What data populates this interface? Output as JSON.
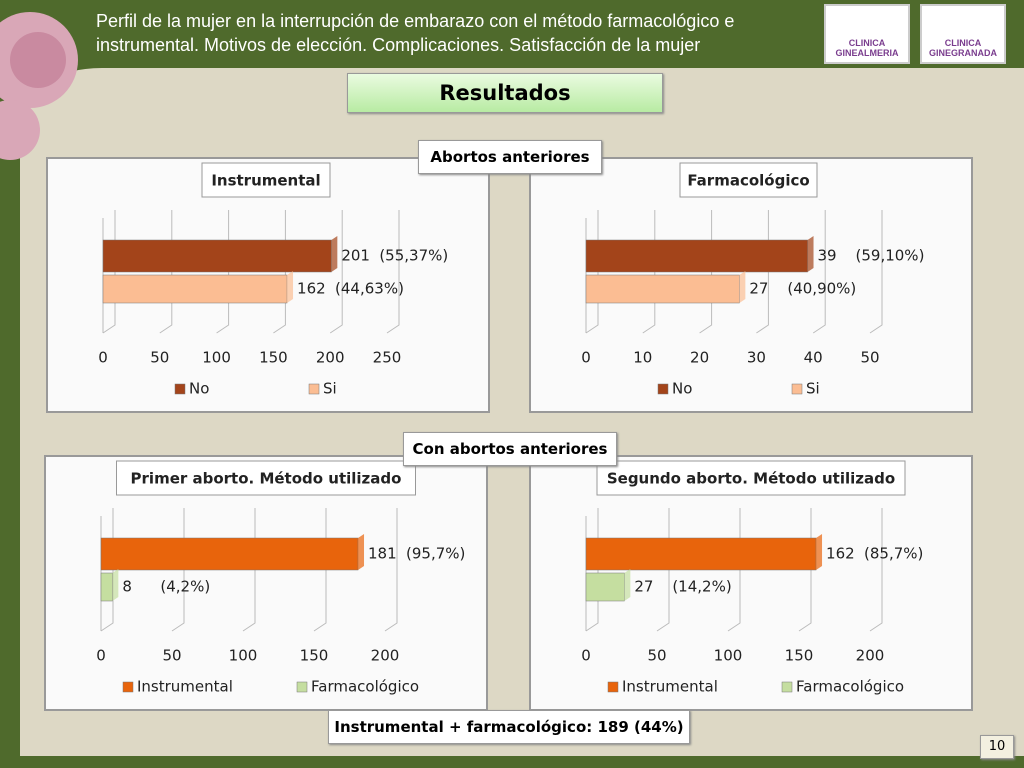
{
  "header": {
    "title": "Perfil de la mujer en la interrupción de embarazo con el método farmacológico e instrumental. Motivos de elección. Complicaciones. Satisfacción de la mujer"
  },
  "logos": [
    "CLINICA GINEALMERIA",
    "CLINICA GINEGRANADA"
  ],
  "heading": "Resultados",
  "sections": [
    "Abortos anteriores",
    "Con abortos anteriores"
  ],
  "footer": "Instrumental + farmacológico: 189 (44%)",
  "page_number": "10",
  "chart_data": [
    {
      "type": "bar",
      "orientation": "horizontal",
      "title": "Instrumental",
      "series": [
        {
          "name": "No",
          "color": "#a3441a",
          "values": [
            201
          ],
          "share_labels": [
            "(55,37%)"
          ]
        },
        {
          "name": "Si",
          "color": "#fbbd93",
          "values": [
            162
          ],
          "share_labels": [
            "(44,63%)"
          ]
        }
      ],
      "xlim": [
        0,
        250
      ],
      "xticks": [
        0,
        50,
        100,
        150,
        200,
        250
      ],
      "grid": true,
      "legend": "bottom"
    },
    {
      "type": "bar",
      "orientation": "horizontal",
      "title": "Farmacológico",
      "series": [
        {
          "name": "No",
          "color": "#a3441a",
          "values": [
            39
          ],
          "share_labels": [
            "(59,10%)"
          ]
        },
        {
          "name": "Si",
          "color": "#fbbd93",
          "values": [
            27
          ],
          "share_labels": [
            "(40,90%)"
          ]
        }
      ],
      "xlim": [
        0,
        50
      ],
      "xticks": [
        0,
        10,
        20,
        30,
        40,
        50
      ],
      "grid": true,
      "legend": "bottom"
    },
    {
      "type": "bar",
      "orientation": "horizontal",
      "title": "Primer aborto. Método utilizado",
      "series": [
        {
          "name": "Instrumental",
          "color": "#e8640c",
          "values": [
            181
          ],
          "share_labels": [
            "(95,7%)"
          ]
        },
        {
          "name": "Farmacológico",
          "color": "#c5dea0",
          "values": [
            8
          ],
          "share_labels": [
            "(4,2%)"
          ]
        }
      ],
      "xlim": [
        0,
        200
      ],
      "xticks": [
        0,
        50,
        100,
        150,
        200
      ],
      "grid": true,
      "legend": "bottom"
    },
    {
      "type": "bar",
      "orientation": "horizontal",
      "title": "Segundo aborto. Método utilizado",
      "series": [
        {
          "name": "Instrumental",
          "color": "#e8640c",
          "values": [
            162
          ],
          "share_labels": [
            "(85,7%)"
          ]
        },
        {
          "name": "Farmacológico",
          "color": "#c5dea0",
          "values": [
            27
          ],
          "share_labels": [
            "(14,2%)"
          ]
        }
      ],
      "xlim": [
        0,
        200
      ],
      "xticks": [
        0,
        50,
        100,
        150,
        200
      ],
      "grid": true,
      "legend": "bottom"
    }
  ]
}
